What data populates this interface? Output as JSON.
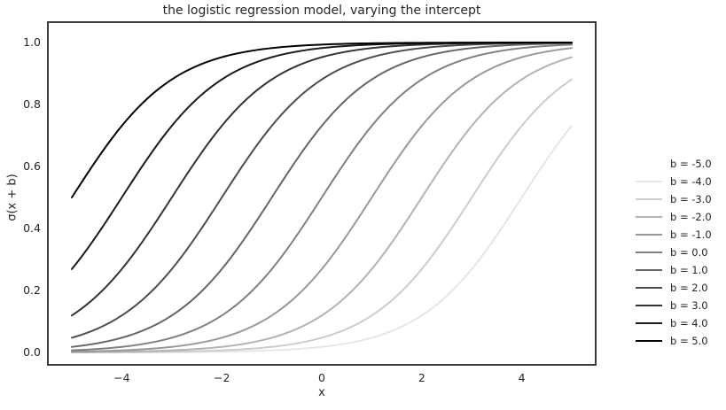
{
  "chart_data": {
    "type": "line",
    "title": "the logistic regression model, varying the intercept",
    "xlabel": "x",
    "ylabel": "σ(x + b)",
    "function": "sigma(x + b) = 1 / (1 + exp(-(x + b)))",
    "x_range": [
      -5,
      5
    ],
    "x_sample_step": 0.1,
    "xlim": [
      -5.5,
      5.5
    ],
    "ylim": [
      -0.05,
      1.05
    ],
    "grid": false,
    "legend_position": "right of axes",
    "xticks": {
      "values": [
        -4,
        -2,
        0,
        2,
        4
      ],
      "labels": [
        "−4",
        "−2",
        "0",
        "2",
        "4"
      ]
    },
    "yticks": {
      "values": [
        0.0,
        0.2,
        0.4,
        0.6,
        0.8,
        1.0
      ],
      "labels": [
        "0.0",
        "0.2",
        "0.4",
        "0.6",
        "0.8",
        "1.0"
      ]
    },
    "series": [
      {
        "label": "b = -5.0",
        "b": -5.0,
        "color": "#ffffff"
      },
      {
        "label": "b = -4.0",
        "b": -4.0,
        "color": "#e6e6e6"
      },
      {
        "label": "b = -3.0",
        "b": -3.0,
        "color": "#cccccc"
      },
      {
        "label": "b = -2.0",
        "b": -2.0,
        "color": "#b3b3b3"
      },
      {
        "label": "b = -1.0",
        "b": -1.0,
        "color": "#999999"
      },
      {
        "label": "b = 0.0",
        "b": 0.0,
        "color": "#808080"
      },
      {
        "label": "b = 1.0",
        "b": 1.0,
        "color": "#666666"
      },
      {
        "label": "b = 2.0",
        "b": 2.0,
        "color": "#4d4d4d"
      },
      {
        "label": "b = 3.0",
        "b": 3.0,
        "color": "#333333"
      },
      {
        "label": "b = 4.0",
        "b": 4.0,
        "color": "#1a1a1a"
      },
      {
        "label": "b = 5.0",
        "b": 5.0,
        "color": "#000000"
      }
    ]
  },
  "colors": {
    "axes_edge": "#3b3b3b",
    "text": "#262626",
    "background": "#ffffff"
  }
}
